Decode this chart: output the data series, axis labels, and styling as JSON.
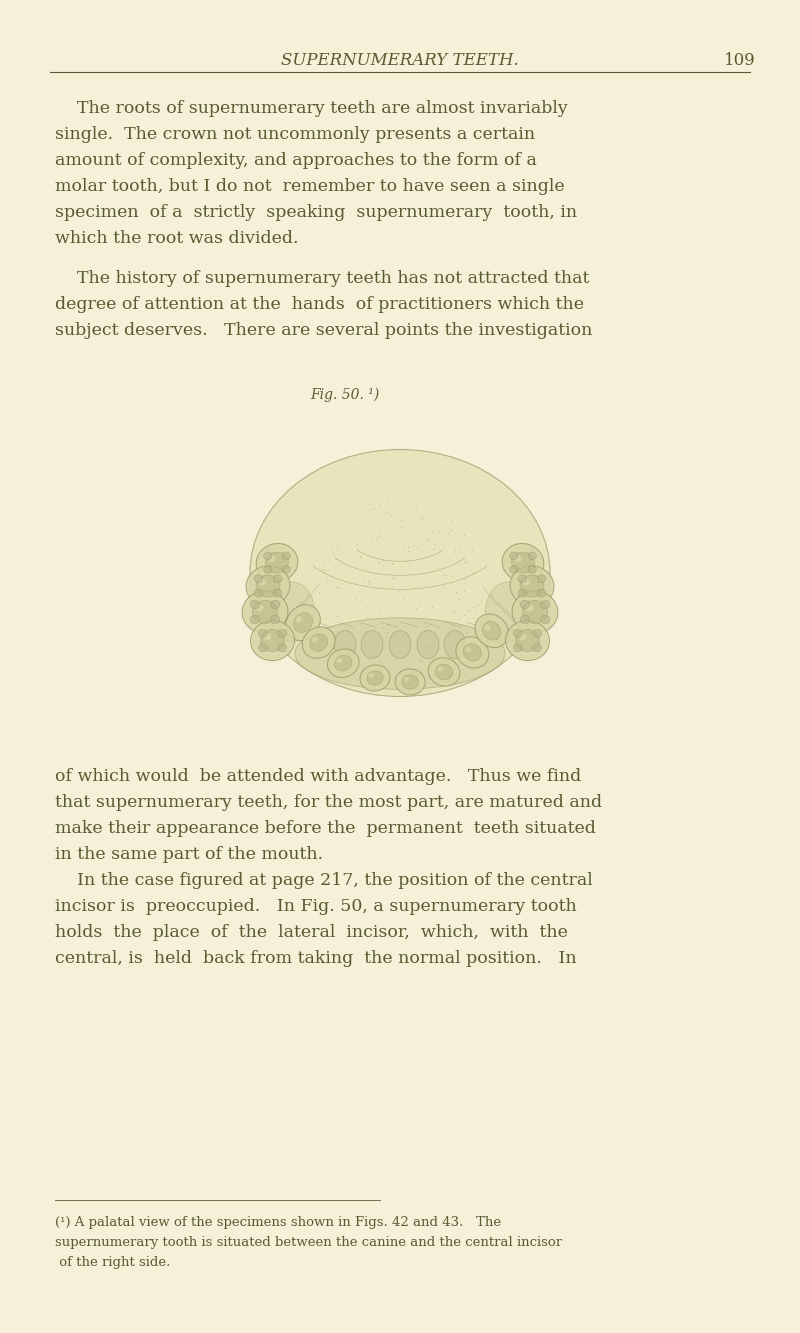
{
  "background_color": "#f5f0d8",
  "page_width": 8.0,
  "page_height": 13.33,
  "header_title": "SUPERNUMERARY TEETH.",
  "header_page": "109",
  "text_color": "#5a5a32",
  "header_fontsize": 12,
  "body_fontsize": 12.5,
  "small_fontsize": 9.5,
  "fig_label": "Fig. 50. ¹)",
  "para1": "    The roots of supernumerary teeth are almost invariably\nsingle.  The crown not uncommonly presents a certain\namount of complexity, and approaches to the form of a\nmolar tooth, but I do not  remember to have seen a single\nspecimen  of a  strictly  speaking  supernumerary  tooth, in\nwhich the root was divided.",
  "para2": "    The history of supernumerary teeth has not attracted that\ndegree of attention at the  hands  of practitioners which the\nsubject deserves.   There are several points the investigation",
  "para3": "of which would  be attended with advantage.   Thus we find\nthat supernumerary teeth, for the most part, are matured and\nmake their appearance before the  permanent  teeth situated\nin the same part of the mouth.\n    In the case figured at page 217, the position of the central\nincisor is  preoccupied.   In Fig. 50, a supernumerary tooth\nholds  the  place  of  the  lateral  incisor,  which,  with  the\ncentral, is  held  back from taking  the normal position.   In",
  "footnote": "(¹) A palatal view of the specimens shown in Figs. 42 and 43.   The\nsupernumerary tooth is situated between the canine and the central incisor\n of the right side."
}
